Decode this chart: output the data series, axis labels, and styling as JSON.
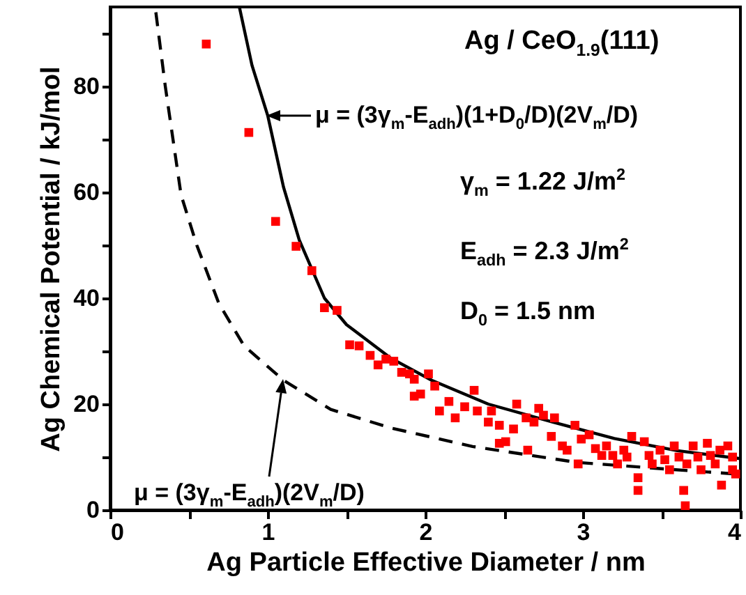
{
  "chart_data": {
    "type": "scatter",
    "xlabel": "Ag Particle Effective Diameter / nm",
    "ylabel": "Ag Chemical Potential / kJ/mol",
    "xlim": [
      0,
      4
    ],
    "ylim": [
      0,
      95
    ],
    "xticks": [
      0,
      {
        "value": 0.5,
        "label": null
      },
      1,
      {
        "value": 1.5,
        "label": null
      },
      2,
      {
        "value": 2.5,
        "label": null
      },
      3,
      {
        "value": 3.5,
        "label": null
      },
      4
    ],
    "yticks": [
      0,
      {
        "value": 10,
        "label": null
      },
      20,
      {
        "value": 30,
        "label": null
      },
      40,
      {
        "value": 50,
        "label": null
      },
      60,
      {
        "value": 70,
        "label": null
      },
      80,
      {
        "value": 90,
        "label": null
      }
    ],
    "grid": false,
    "annotations": [
      "Ag / CeO$_{1.9}$(111)",
      "μ = (3γ$_{m}$-E$_{adh}$)(1+D$_{0}$/D)(2V$_{m}$/D)",
      "γ$_{m}$ = 1.22 J/m$^{2}$",
      "E$_{adh}$ = 2.3 J/m$^{2}$",
      "D$_{0}$ = 1.5 nm",
      "μ = (3γ$_{m}$-E$_{adh}$)(2V$_{m}$/D)"
    ],
    "series": [
      {
        "type": "line",
        "color": "#000000",
        "line_style": "dashed",
        "marker": "none",
        "x": [
          0.29,
          0.35,
          0.45,
          0.55,
          0.69,
          0.85,
          1.1,
          1.4,
          1.78,
          2.3,
          2.96,
          3.5,
          3.97
        ],
        "values": [
          94,
          80,
          59.5,
          50,
          39,
          31,
          24.5,
          19,
          15.5,
          12,
          9,
          7.8,
          6.8
        ]
      },
      {
        "type": "line",
        "color": "#000000",
        "line_style": "solid",
        "marker": "none",
        "x": [
          0.82,
          0.9,
          1.0,
          1.1,
          1.2,
          1.36,
          1.5,
          1.78,
          2.04,
          2.4,
          2.81,
          3.2,
          3.6,
          4.0
        ],
        "values": [
          95,
          84,
          74.5,
          61,
          51,
          40,
          35,
          28.7,
          24.5,
          20,
          16.6,
          13.5,
          11.2,
          9.7
        ]
      },
      {
        "type": "scatter",
        "color": "#ff0000",
        "marker": "square",
        "x": [
          0.61,
          0.88,
          1.05,
          1.18,
          1.28,
          1.36,
          1.44,
          1.52,
          1.58,
          1.65,
          1.7,
          1.75,
          1.8,
          1.85,
          1.9,
          1.93,
          1.97,
          2.02,
          1.93,
          2.06,
          2.09,
          2.15,
          2.19,
          2.25,
          2.31,
          2.33,
          2.4,
          2.42,
          2.47,
          2.47,
          2.51,
          2.56,
          2.58,
          2.64,
          2.65,
          2.69,
          2.72,
          2.75,
          2.8,
          2.82,
          2.87,
          2.9,
          2.95,
          2.97,
          2.99,
          3.04,
          3.08,
          3.12,
          3.15,
          3.19,
          3.22,
          3.26,
          3.28,
          3.31,
          3.35,
          3.35,
          3.39,
          3.42,
          3.44,
          3.49,
          3.52,
          3.55,
          3.58,
          3.61,
          3.64,
          3.65,
          3.66,
          3.7,
          3.73,
          3.75,
          3.79,
          3.81,
          3.84,
          3.87,
          3.88,
          3.92,
          3.95,
          3.97,
          3.95
        ],
        "values": [
          88,
          71.3,
          54.5,
          49.8,
          45.2,
          38.2,
          37.7,
          31.2,
          31,
          29.2,
          27.4,
          28.5,
          28.1,
          26,
          25.7,
          21.5,
          21.9,
          25.7,
          24.7,
          23.4,
          18.7,
          20.5,
          17.4,
          19.5,
          22.6,
          18.7,
          16.6,
          18.7,
          16,
          12.6,
          12.9,
          15.3,
          20,
          17.4,
          11.3,
          16.6,
          19.2,
          17.9,
          13.9,
          17.4,
          12.1,
          11.3,
          16,
          8.7,
          13.4,
          14.2,
          11.6,
          10.3,
          12.1,
          10.3,
          8.7,
          11.3,
          10,
          13.9,
          6.1,
          3.7,
          12.9,
          10.3,
          8.7,
          11.3,
          9.5,
          7.6,
          12.1,
          10,
          3.7,
          0.8,
          8.7,
          12.1,
          10,
          7.6,
          12.6,
          10.3,
          8.7,
          11.3,
          4.7,
          12.1,
          10,
          6.8,
          7.6
        ]
      }
    ]
  }
}
